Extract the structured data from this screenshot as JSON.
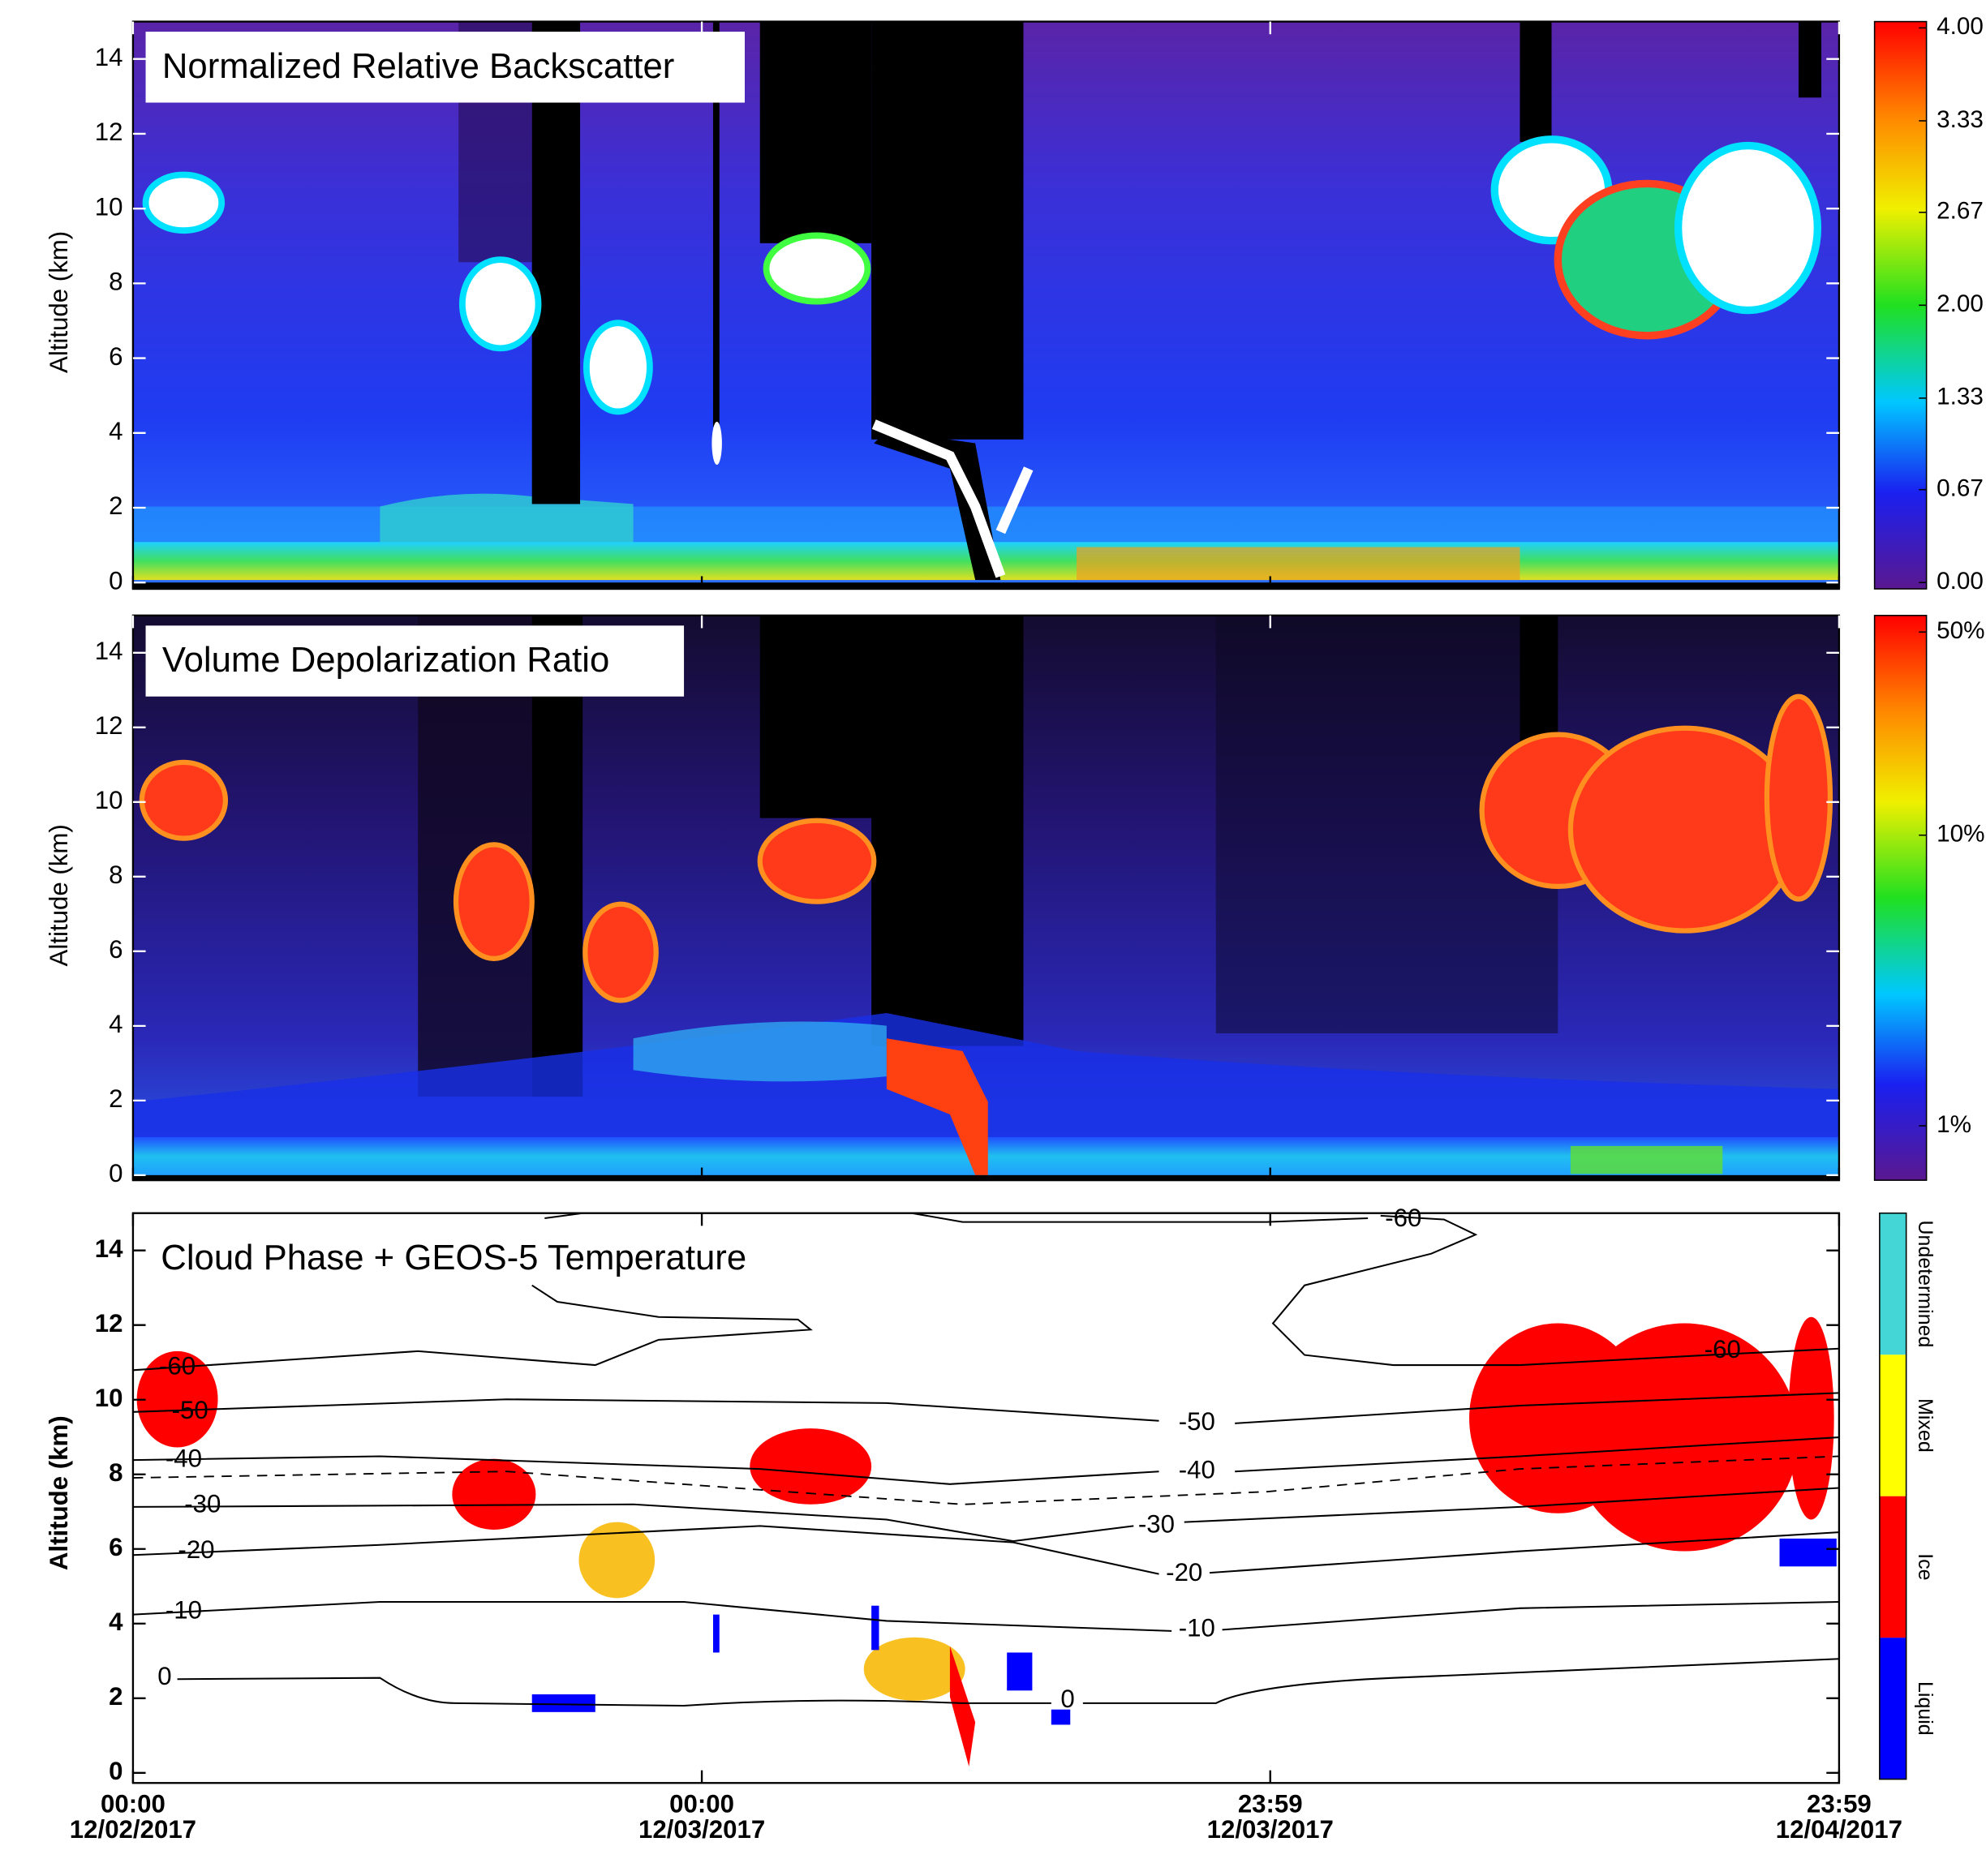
{
  "chart_data": [
    {
      "type": "heatmap",
      "title": "Normalized Relative Backscatter",
      "y_label": "Altitude (km)",
      "xlim": [
        0,
        2.9993
      ],
      "xticks": [
        0,
        1,
        1.9993,
        2.9993
      ],
      "ylim": [
        0,
        15
      ],
      "yticks": [
        0,
        2,
        4,
        6,
        8,
        10,
        12,
        14
      ],
      "colorbar": {
        "lim": [
          0,
          4
        ],
        "ticks": [
          {
            "value": 0,
            "label": "0.00"
          },
          0.67,
          1.33,
          {
            "value": 2,
            "label": "2.00"
          },
          2.67,
          3.33,
          {
            "value": 4,
            "label": "4.00"
          }
        ]
      }
    },
    {
      "type": "heatmap",
      "title": "Volume Depolarization Ratio",
      "y_label": "Altitude (km)",
      "xlim": [
        0,
        2.9993
      ],
      "xticks": [
        0,
        1,
        1.9993,
        2.9993
      ],
      "ylim": [
        0,
        15
      ],
      "yticks": [
        0,
        2,
        4,
        6,
        8,
        10,
        12,
        14
      ],
      "colorbar": {
        "log": true,
        "lim": [
          0.65,
          57
        ],
        "ticks": [
          {
            "value": 1,
            "label": "1%"
          },
          {
            "value": 10,
            "label": "10%"
          },
          {
            "value": 50,
            "label": "50%"
          }
        ]
      }
    },
    {
      "type": "phase",
      "title": "Cloud Phase + GEOS-5 Temperature",
      "y_label": "Altitude (km)",
      "xlim": [
        0,
        2.9993
      ],
      "xticks": [
        {
          "value": 0,
          "label": "00:00",
          "date": "12/02/2017"
        },
        {
          "value": 1,
          "label": "00:00",
          "date": "12/03/2017"
        },
        {
          "value": 1.9993,
          "label": "23:59",
          "date": "12/03/2017"
        },
        {
          "value": 2.9993,
          "label": "23:59",
          "date": "12/04/2017"
        }
      ],
      "ylim": [
        0,
        15
      ],
      "yticks": [
        0,
        2,
        4,
        6,
        8,
        10,
        12,
        14
      ],
      "contour_levels": [
        -60,
        -50,
        -40,
        -30,
        -20,
        -10,
        0
      ],
      "colorbar": {
        "categories": [
          {
            "name": "Liquid",
            "color": "#0000ff"
          },
          {
            "name": "Ice",
            "color": "#ff0000"
          },
          {
            "name": "Mixed",
            "color": "#ffff00"
          },
          {
            "name": "Undetermined",
            "color": "#44d6d6"
          }
        ]
      }
    }
  ]
}
